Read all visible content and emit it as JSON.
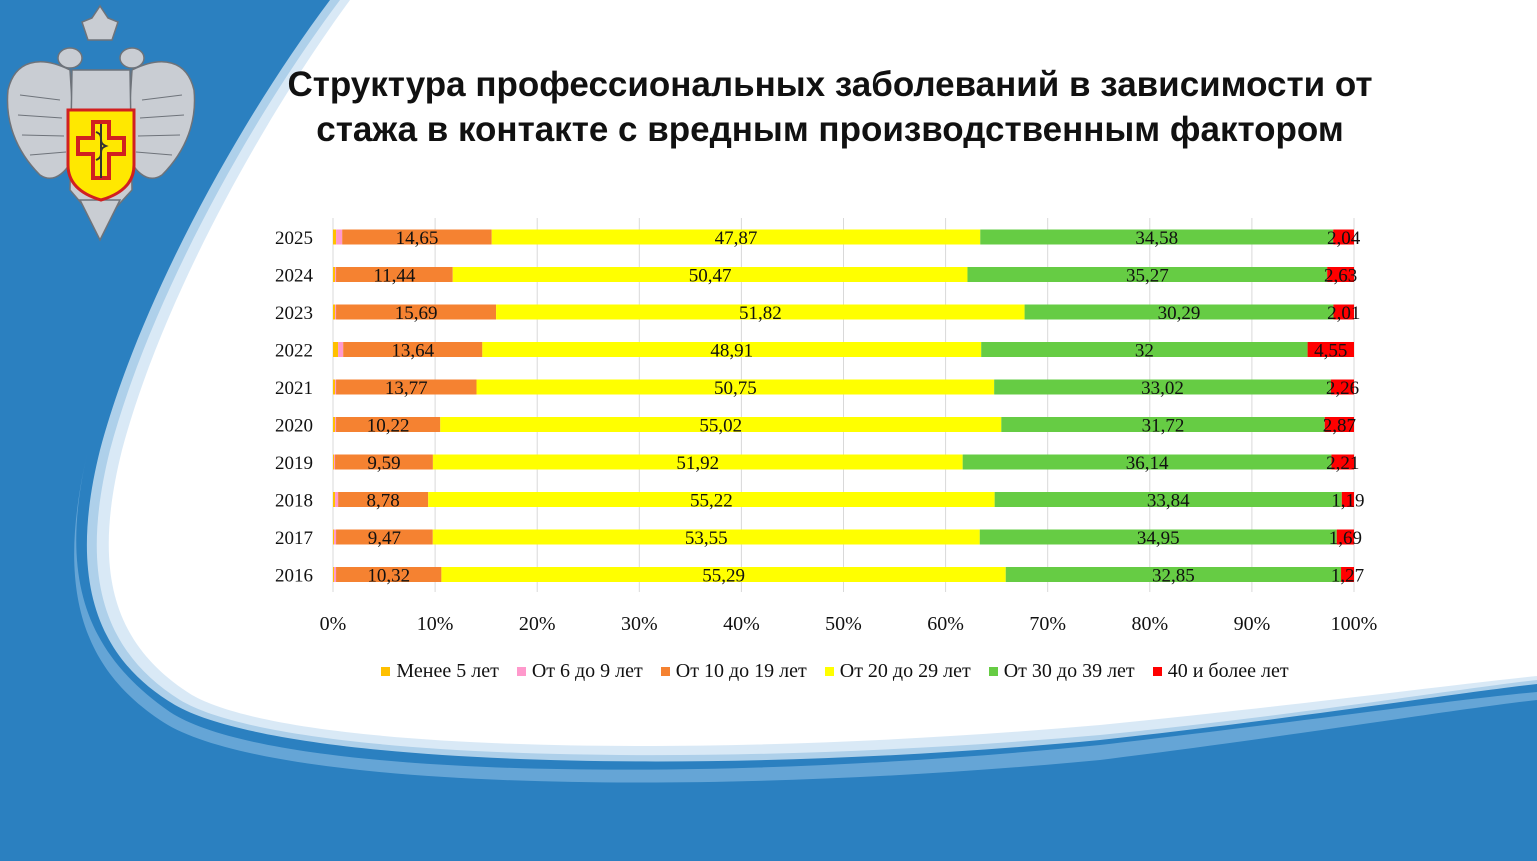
{
  "title": {
    "line1": "Структура профессиональных заболеваний в зависимости от",
    "line2": "стажа в контакте с вредным производственным фактором"
  },
  "emblem": {
    "icon": "rospotrebnadzor-eagle-emblem-icon"
  },
  "chart_data": {
    "type": "bar",
    "orientation": "horizontal",
    "stacked": "percent",
    "categories": [
      "2025",
      "2024",
      "2023",
      "2022",
      "2021",
      "2020",
      "2019",
      "2018",
      "2017",
      "2016"
    ],
    "x_ticks": [
      "0%",
      "10%",
      "20%",
      "30%",
      "40%",
      "50%",
      "60%",
      "70%",
      "80%",
      "90%",
      "100%"
    ],
    "xlim": [
      0,
      100
    ],
    "grid": true,
    "legend_position": "bottom",
    "series": [
      {
        "name": "Менее 5 лет",
        "color": "#FFC000",
        "values": [
          0.3,
          0.2,
          0.2,
          0.5,
          0.2,
          0.2,
          0.1,
          0.2,
          0.1,
          0.1
        ],
        "labels": [
          false,
          false,
          false,
          false,
          false,
          false,
          false,
          false,
          false,
          false
        ]
      },
      {
        "name": "От 6 до 9 лет",
        "color": "#FF99CC",
        "values": [
          0.6,
          0.1,
          0.1,
          0.5,
          0.1,
          0.1,
          0.1,
          0.3,
          0.2,
          0.2
        ],
        "labels": [
          false,
          false,
          false,
          false,
          false,
          false,
          false,
          false,
          false,
          false
        ]
      },
      {
        "name": "От 10 до 19 лет",
        "color": "#F58231",
        "values": [
          14.65,
          11.44,
          15.69,
          13.64,
          13.77,
          10.22,
          9.59,
          8.78,
          9.47,
          10.32
        ],
        "labels": [
          true,
          true,
          true,
          true,
          true,
          true,
          true,
          true,
          true,
          true
        ]
      },
      {
        "name": "От 20 до 29 лет",
        "color": "#FFFF00",
        "values": [
          47.87,
          50.47,
          51.82,
          48.91,
          50.75,
          55.02,
          51.92,
          55.22,
          53.55,
          55.29
        ],
        "labels": [
          true,
          true,
          true,
          true,
          true,
          true,
          true,
          true,
          true,
          true
        ]
      },
      {
        "name": "От 30 до 39 лет",
        "color": "#66CC44",
        "values": [
          34.58,
          35.27,
          30.29,
          32,
          33.02,
          31.72,
          36.14,
          33.84,
          34.95,
          32.85
        ],
        "labels": [
          true,
          true,
          true,
          true,
          true,
          true,
          true,
          true,
          true,
          true
        ]
      },
      {
        "name": "40 и более лет",
        "color": "#FF0000",
        "values": [
          2.04,
          2.63,
          2.01,
          4.55,
          2.26,
          2.87,
          2.21,
          1.19,
          1.69,
          1.27
        ],
        "labels": [
          true,
          true,
          true,
          true,
          true,
          true,
          true,
          true,
          true,
          true
        ]
      }
    ],
    "value_text": {
      "От 10 до 19 лет": [
        "14,65",
        "11,44",
        "15,69",
        "13,64",
        "13,77",
        "10,22",
        "9,59",
        "8,78",
        "9,47",
        "10,32"
      ],
      "От 20 до 29 лет": [
        "47,87",
        "50,47",
        "51,82",
        "48,91",
        "50,75",
        "55,02",
        "51,92",
        "55,22",
        "53,55",
        "55,29"
      ],
      "От 30 до 39 лет": [
        "34,58",
        "35,27",
        "30,29",
        "32",
        "33,02",
        "31,72",
        "36,14",
        "33,84",
        "34,95",
        "32,85"
      ],
      "40 и более лет": [
        "2,04",
        "2,63",
        "2,01",
        "4,55",
        "2,26",
        "2,87",
        "2,21",
        "1,19",
        "1,69",
        "1,27"
      ]
    }
  },
  "colors": {
    "background_blue": "#2B7FBE",
    "light_blue": "#DCEBF7"
  }
}
